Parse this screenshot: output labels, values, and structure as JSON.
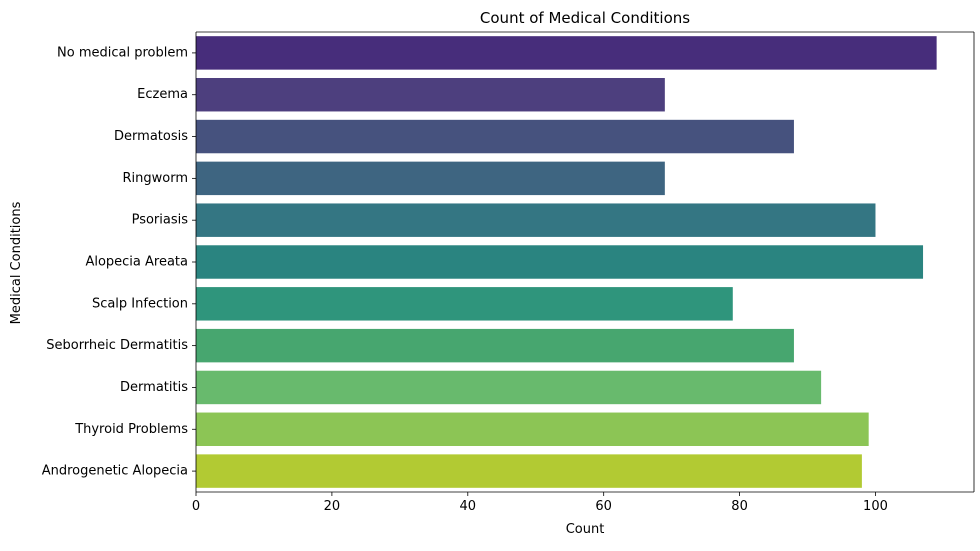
{
  "chart_data": {
    "type": "bar",
    "orientation": "horizontal",
    "title": "Count of Medical Conditions",
    "xlabel": "Count",
    "ylabel": "Medical Conditions",
    "xlim": [
      0,
      114.5
    ],
    "xticks": [
      0,
      20,
      40,
      60,
      80,
      100
    ],
    "grid": false,
    "categories": [
      "No medical problem",
      "Eczema",
      "Dermatosis",
      "Ringworm",
      "Psoriasis",
      "Alopecia Areata ",
      "Scalp Infection",
      "Seborrheic Dermatitis",
      "Dermatitis",
      "Thyroid Problems",
      "Androgenetic Alopecia"
    ],
    "values": [
      109,
      69,
      88,
      69,
      100,
      107,
      79,
      88,
      92,
      99,
      98
    ],
    "colors": [
      "#472D7B",
      "#4D3F7E",
      "#46527E",
      "#3E6581",
      "#347683",
      "#2A8480",
      "#2F957C",
      "#47A66F",
      "#68BA6D",
      "#8CC555",
      "#B2CA33"
    ]
  }
}
